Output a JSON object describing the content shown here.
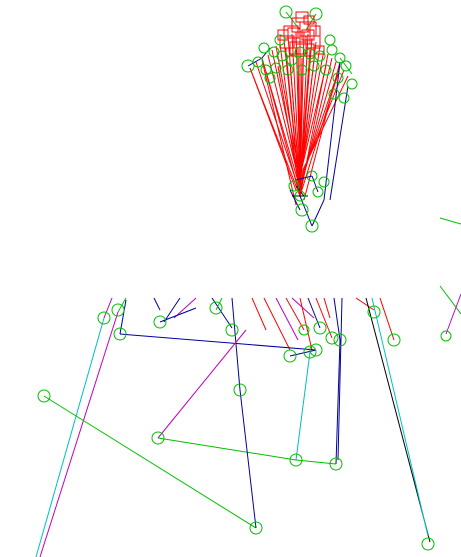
{
  "visualization": {
    "background_color": "#ffffff",
    "palette": {
      "red": "#ff0000",
      "blue": "#0000a0",
      "green": "#00c000",
      "magenta": "#c000c0",
      "cyan": "#00c0c0",
      "black": "#000000"
    },
    "node_color": "#00c000",
    "box_color": "#ff0000",
    "top_cluster": {
      "node_count": 34,
      "edge_count": 48,
      "box_count": 16
    },
    "bottom_graph": {
      "node_count": 22,
      "edge_count": 26
    }
  }
}
